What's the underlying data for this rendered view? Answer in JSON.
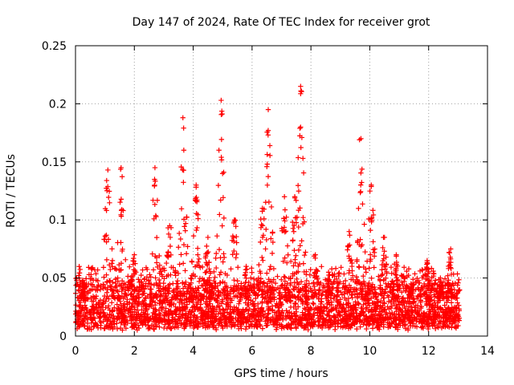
{
  "chart_data": {
    "type": "scatter",
    "title": "Day 147 of 2024, Rate Of TEC Index for receiver grot",
    "xlabel": "GPS time / hours",
    "ylabel": "ROTI / TECUs",
    "xlim": [
      0,
      14
    ],
    "ylim": [
      0,
      0.25
    ],
    "x_ticks": [
      0,
      2,
      4,
      6,
      8,
      10,
      12,
      14
    ],
    "y_ticks": [
      0,
      0.05,
      0.1,
      0.15,
      0.2,
      0.25
    ],
    "grid": true,
    "marker": "plus",
    "colors": {
      "points": "#ff0000",
      "grid": "#a0a0a0",
      "axes": "#000000"
    },
    "x_data_range": [
      0,
      13.05
    ],
    "baseline_band": [
      0.005,
      0.04
    ],
    "peaks": [
      {
        "x": 0.25,
        "y": 0.048
      },
      {
        "x": 1.1,
        "y": 0.143
      },
      {
        "x": 1.55,
        "y": 0.145
      },
      {
        "x": 2.0,
        "y": 0.07
      },
      {
        "x": 2.7,
        "y": 0.145
      },
      {
        "x": 3.2,
        "y": 0.095
      },
      {
        "x": 3.65,
        "y": 0.188
      },
      {
        "x": 4.1,
        "y": 0.13
      },
      {
        "x": 4.5,
        "y": 0.085
      },
      {
        "x": 4.95,
        "y": 0.203
      },
      {
        "x": 5.4,
        "y": 0.1
      },
      {
        "x": 5.8,
        "y": 0.06
      },
      {
        "x": 6.35,
        "y": 0.11
      },
      {
        "x": 6.55,
        "y": 0.195
      },
      {
        "x": 7.1,
        "y": 0.12
      },
      {
        "x": 7.45,
        "y": 0.12
      },
      {
        "x": 7.65,
        "y": 0.215
      },
      {
        "x": 8.15,
        "y": 0.07
      },
      {
        "x": 8.6,
        "y": 0.055
      },
      {
        "x": 9.3,
        "y": 0.09
      },
      {
        "x": 9.7,
        "y": 0.17
      },
      {
        "x": 10.05,
        "y": 0.13
      },
      {
        "x": 10.5,
        "y": 0.085
      },
      {
        "x": 10.9,
        "y": 0.07
      },
      {
        "x": 11.4,
        "y": 0.045
      },
      {
        "x": 11.95,
        "y": 0.065
      },
      {
        "x": 12.4,
        "y": 0.05
      },
      {
        "x": 12.75,
        "y": 0.075
      }
    ]
  }
}
